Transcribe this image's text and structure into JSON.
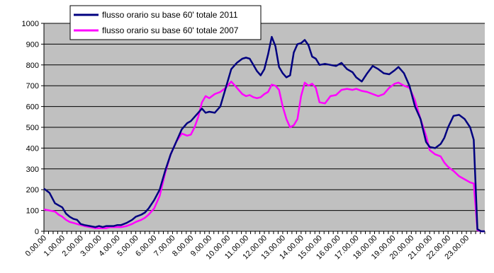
{
  "chart_data": {
    "type": "line",
    "title": "",
    "xlabel": "",
    "ylabel": "",
    "ylim": [
      0,
      1000
    ],
    "yticks": [
      0,
      100,
      200,
      300,
      400,
      500,
      600,
      700,
      800,
      900,
      1000
    ],
    "xlim": [
      0,
      24
    ],
    "xtick_labels": [
      "0.00.00",
      "1.00.00",
      "2.00.00",
      "3.00.00",
      "4.00.00",
      "5.00.00",
      "6.00.00",
      "7.00.00",
      "8.00.00",
      "9.00.00",
      "10.00.00",
      "11.00.00",
      "12.00.00",
      "13.00.00",
      "14.00.00",
      "15.00.00",
      "16.00.00",
      "17.00.00",
      "18.00.00",
      "19.00.00",
      "20.00.00",
      "21.00.00",
      "22.00.00",
      "23.00.00"
    ],
    "grid": "horizontal",
    "plot_background": "#c0c0c0",
    "legend_position": "top-left",
    "series": [
      {
        "name": "flusso orario su base 60' totale 2011",
        "color": "#000080",
        "x": [
          0,
          0.3,
          0.6,
          0.8,
          1.0,
          1.2,
          1.4,
          1.6,
          1.8,
          2.0,
          2.2,
          2.5,
          2.8,
          3.0,
          3.2,
          3.4,
          3.6,
          3.8,
          4.0,
          4.2,
          4.5,
          4.8,
          5.0,
          5.3,
          5.5,
          5.7,
          6.0,
          6.3,
          6.6,
          6.9,
          7.2,
          7.5,
          7.8,
          8.0,
          8.2,
          8.4,
          8.6,
          8.8,
          9.0,
          9.3,
          9.6,
          9.9,
          10.2,
          10.5,
          10.8,
          11.0,
          11.2,
          11.4,
          11.6,
          11.8,
          12.0,
          12.2,
          12.4,
          12.6,
          12.8,
          13.0,
          13.2,
          13.4,
          13.6,
          13.8,
          14.0,
          14.2,
          14.4,
          14.6,
          14.8,
          15.0,
          15.3,
          15.6,
          15.9,
          16.2,
          16.5,
          16.8,
          17.0,
          17.3,
          17.6,
          17.9,
          18.2,
          18.5,
          18.8,
          19.1,
          19.3,
          19.6,
          19.9,
          20.2,
          20.5,
          20.8,
          21.0,
          21.3,
          21.6,
          21.8,
          22.0,
          22.3,
          22.6,
          22.9,
          23.2,
          23.4,
          23.6,
          23.8,
          24.0
        ],
        "values": [
          205,
          185,
          135,
          125,
          115,
          85,
          70,
          60,
          55,
          35,
          30,
          25,
          20,
          25,
          20,
          25,
          25,
          25,
          30,
          30,
          40,
          55,
          70,
          80,
          90,
          110,
          150,
          200,
          290,
          370,
          430,
          490,
          520,
          530,
          550,
          570,
          590,
          570,
          575,
          570,
          600,
          690,
          780,
          810,
          830,
          835,
          830,
          800,
          770,
          750,
          780,
          850,
          935,
          890,
          790,
          760,
          740,
          750,
          860,
          900,
          905,
          920,
          895,
          840,
          830,
          800,
          805,
          800,
          795,
          810,
          780,
          765,
          740,
          720,
          760,
          795,
          780,
          760,
          755,
          775,
          790,
          760,
          700,
          600,
          540,
          430,
          405,
          400,
          420,
          450,
          500,
          555,
          560,
          540,
          500,
          440,
          10,
          0,
          0
        ],
        "color_note": ""
      },
      {
        "name": "flusso orario su base 60' totale 2007",
        "color": "#ff00ff",
        "x": [
          0,
          0.3,
          0.6,
          0.8,
          1.0,
          1.2,
          1.4,
          1.6,
          1.8,
          2.0,
          2.2,
          2.5,
          2.8,
          3.0,
          3.2,
          3.4,
          3.6,
          3.8,
          4.0,
          4.2,
          4.5,
          4.8,
          5.0,
          5.3,
          5.5,
          5.7,
          6.0,
          6.3,
          6.6,
          6.9,
          7.2,
          7.5,
          7.8,
          8.0,
          8.2,
          8.4,
          8.6,
          8.8,
          9.0,
          9.3,
          9.6,
          9.9,
          10.2,
          10.5,
          10.8,
          11.0,
          11.2,
          11.4,
          11.6,
          11.8,
          12.0,
          12.2,
          12.4,
          12.6,
          12.8,
          13.0,
          13.2,
          13.4,
          13.6,
          13.8,
          14.0,
          14.2,
          14.4,
          14.6,
          14.8,
          15.0,
          15.3,
          15.6,
          15.9,
          16.2,
          16.5,
          16.8,
          17.0,
          17.3,
          17.6,
          17.9,
          18.2,
          18.5,
          18.8,
          19.1,
          19.3,
          19.6,
          19.9,
          20.2,
          20.5,
          20.8,
          21.0,
          21.3,
          21.6,
          21.8,
          22.0,
          22.3,
          22.6,
          22.9,
          23.2,
          23.4,
          23.6,
          23.8,
          24.0
        ],
        "values": [
          105,
          100,
          95,
          80,
          70,
          55,
          45,
          40,
          35,
          30,
          25,
          20,
          15,
          15,
          15,
          15,
          20,
          20,
          20,
          20,
          25,
          35,
          45,
          55,
          65,
          80,
          110,
          170,
          280,
          370,
          430,
          470,
          460,
          465,
          500,
          550,
          620,
          650,
          640,
          660,
          670,
          690,
          720,
          690,
          660,
          650,
          655,
          645,
          640,
          645,
          660,
          670,
          705,
          700,
          680,
          600,
          540,
          500,
          510,
          540,
          650,
          715,
          700,
          710,
          690,
          620,
          615,
          650,
          655,
          680,
          685,
          680,
          685,
          675,
          670,
          660,
          650,
          660,
          690,
          710,
          715,
          700,
          690,
          630,
          540,
          460,
          390,
          370,
          360,
          330,
          310,
          290,
          265,
          250,
          235,
          230,
          5,
          0,
          0
        ]
      }
    ]
  }
}
